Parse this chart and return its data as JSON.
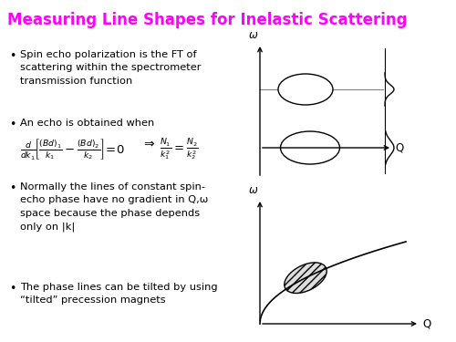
{
  "title": "Measuring Line Shapes for Inelastic Scattering",
  "title_color": "#FF00FF",
  "bg_color": "#FFFFFF",
  "text_color": "#000000",
  "bullet1": "Spin echo polarization is the FT of\nscattering within the spectrometer\ntransmission function",
  "bullet2": "An echo is obtained when",
  "bullet3": "Normally the lines of constant spin-\necho phase have no gradient in Q,ω\nspace because the phase depends\nonly on |k|",
  "bullet4": "The phase lines can be tilted by using\n“tilted” precession magnets",
  "figsize": [
    5.0,
    3.75
  ],
  "dpi": 100
}
